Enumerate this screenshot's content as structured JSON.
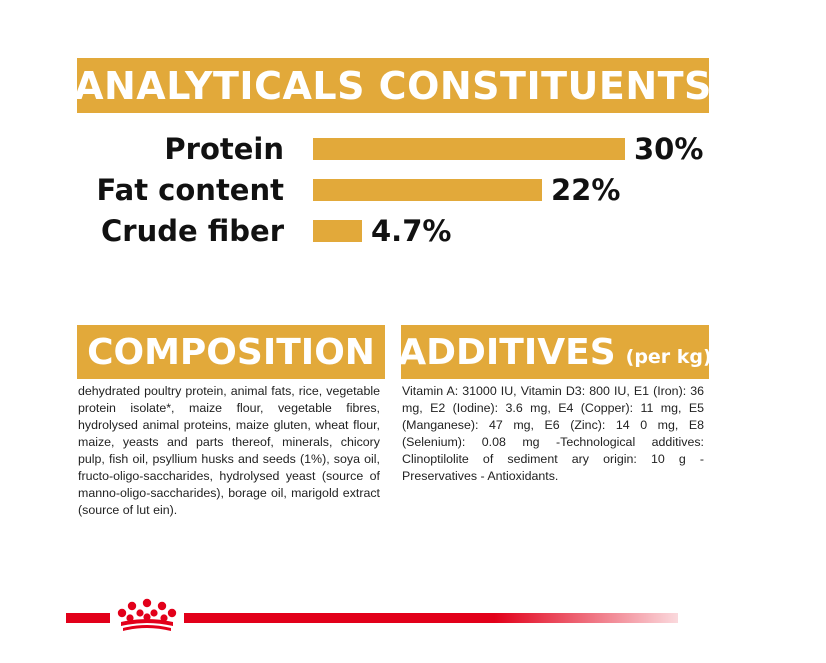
{
  "analyticals": {
    "title": "ANALYTICALS CONSTITUENTS",
    "rows": [
      {
        "label": "Protein",
        "value_text": "30%",
        "value": 30
      },
      {
        "label": "Fat content",
        "value_text": "22%",
        "value": 22
      },
      {
        "label": "Crude fiber",
        "value_text": "4.7%",
        "value": 4.7
      }
    ]
  },
  "composition": {
    "title": "COMPOSITION",
    "text": "dehydrated poultry protein, animal fats, rice, vegetable protein isolate*, maize flour, vegetable fibres, hydrolysed animal proteins, maize gluten, wheat flour, maize, yeasts and parts thereof, minerals, chicory pulp, fish oil, psyllium husks and seeds (1%), soya oil, fructo-oligo-saccharides, hydrolysed yeast (source of manno-oligo-saccharides), borage oil, marigold extract (source of lut ein)."
  },
  "additives": {
    "title": "ADDITIVES",
    "title_suffix": "(per kg)",
    "text": "Vitamin A: 31000 IU, Vitamin D3: 800 IU, E1 (Iron): 36 mg, E2 (Iodine): 3.6 mg, E4 (Copper): 11 mg, E5 (Manganese): 47 mg, E6 (Zinc): 14 0 mg, E8 (Selenium): 0.08 mg -Technological additives: Clinoptilolite of sediment ary origin: 10 g - Preservatives - Antioxidants."
  },
  "colors": {
    "accent": "#E2A93A",
    "brand_red": "#E2001A"
  },
  "footer": {
    "logo_icon": "royal-canin-crown-icon"
  }
}
